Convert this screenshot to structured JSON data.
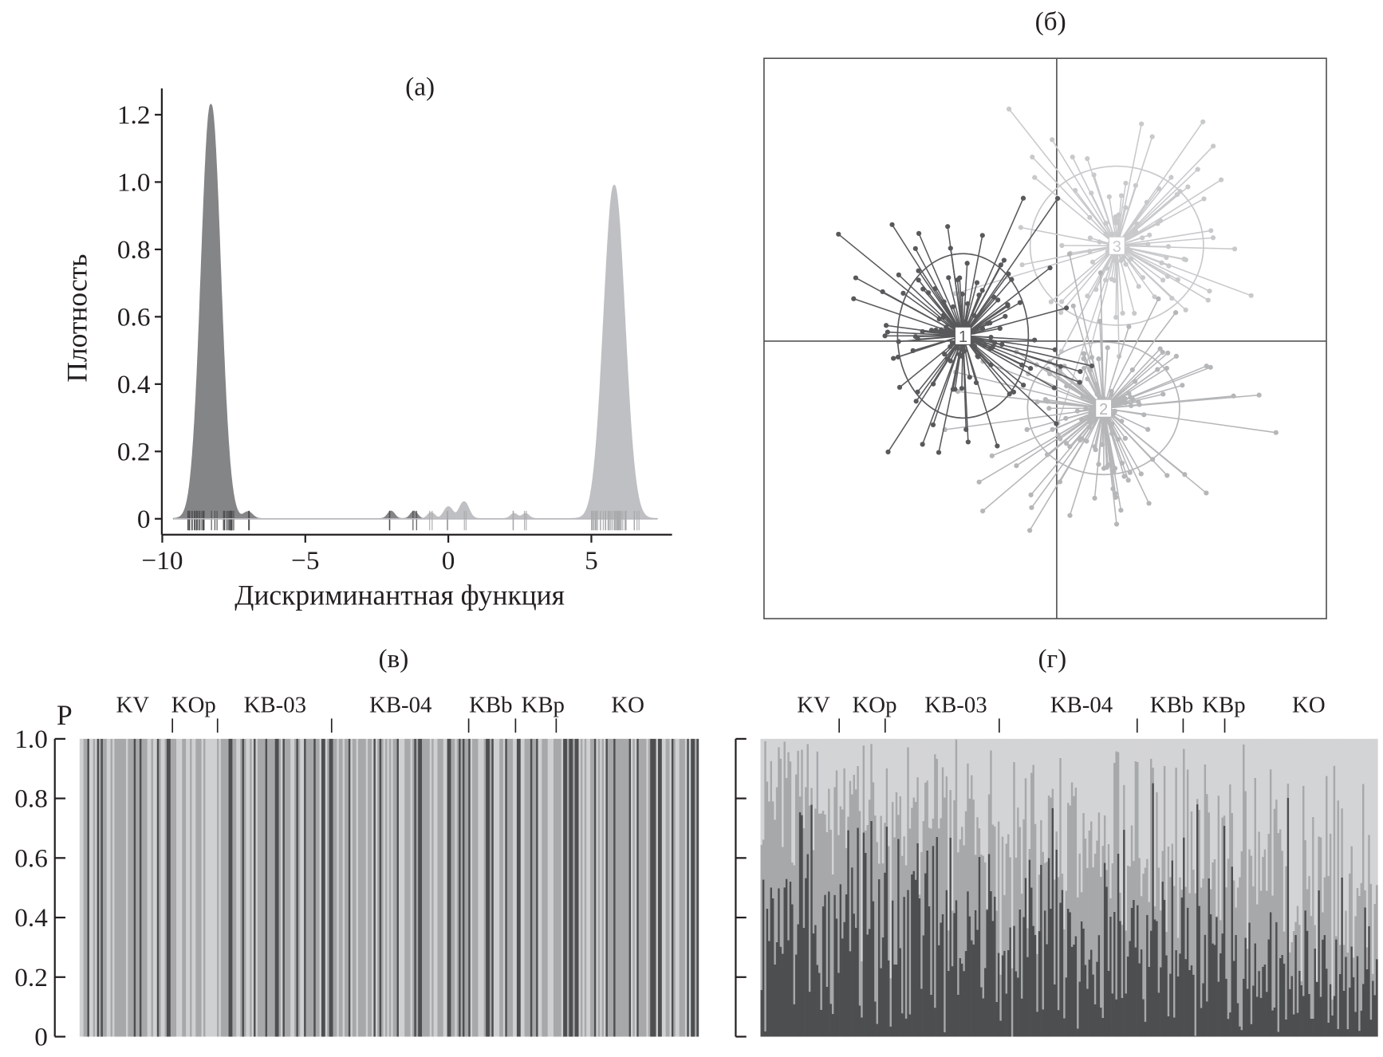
{
  "chart_data": [
    {
      "panel": "(а)",
      "type": "area",
      "xlabel": "Дискриминантная функция",
      "ylabel": "Плотность",
      "xlim": [
        -10,
        7.8
      ],
      "ylim": [
        0,
        1.25
      ],
      "xticks": [
        "−10",
        "−5",
        "0",
        "5"
      ],
      "xtick_values": [
        -10,
        -5,
        0,
        5
      ],
      "yticks": [
        "0",
        "0.2",
        "0.4",
        "0.6",
        "0.8",
        "1.0",
        "1.2"
      ],
      "ytick_values": [
        0,
        0.2,
        0.4,
        0.6,
        0.8,
        1.0,
        1.2
      ],
      "series": [
        {
          "color": "#77787b",
          "peaks": [
            {
              "x": -8.3,
              "height": 1.23,
              "sd": 0.33
            },
            {
              "x": -7.0,
              "height": 0.02,
              "sd": 0.15
            },
            {
              "x": -2.0,
              "height": 0.022,
              "sd": 0.12
            },
            {
              "x": -1.2,
              "height": 0.022,
              "sd": 0.12
            }
          ]
        },
        {
          "color": "#bcbdc0",
          "peaks": [
            {
              "x": 5.8,
              "height": 0.99,
              "sd": 0.36
            },
            {
              "x": -0.6,
              "height": 0.018,
              "sd": 0.12
            },
            {
              "x": 0.0,
              "height": 0.035,
              "sd": 0.15
            },
            {
              "x": 0.55,
              "height": 0.05,
              "sd": 0.16
            },
            {
              "x": 2.3,
              "height": 0.015,
              "sd": 0.12
            },
            {
              "x": 2.7,
              "height": 0.015,
              "sd": 0.12
            }
          ]
        }
      ]
    },
    {
      "panel": "(б)",
      "type": "scatter",
      "clusters": [
        {
          "label": "1",
          "color": "#58595b"
        },
        {
          "label": "2",
          "color": "#b5b6b8"
        },
        {
          "label": "3",
          "color": "#c8c9cb"
        }
      ]
    },
    {
      "panel": "(в)",
      "type": "bar",
      "stacked": true,
      "ylabel": "P",
      "ylim": [
        0,
        1.0
      ],
      "yticks": [
        "0",
        "0.2",
        "0.4",
        "0.6",
        "0.8",
        "1.0"
      ],
      "populations": [
        "KV",
        "KOp",
        "KB-03",
        "KB-04",
        "KBb",
        "KBp",
        "KO"
      ],
      "colors": [
        "#4d4e50",
        "#a7a8aa",
        "#cfd0d2"
      ]
    },
    {
      "panel": "(г)",
      "type": "bar",
      "stacked": true,
      "ylim": [
        0,
        1.0
      ],
      "populations": [
        "KV",
        "KOp",
        "KB-03",
        "KB-04",
        "KBb",
        "KBp",
        "KO"
      ],
      "colors": [
        "#4d4e50",
        "#a7a8aa",
        "#d3d4d6"
      ]
    }
  ]
}
